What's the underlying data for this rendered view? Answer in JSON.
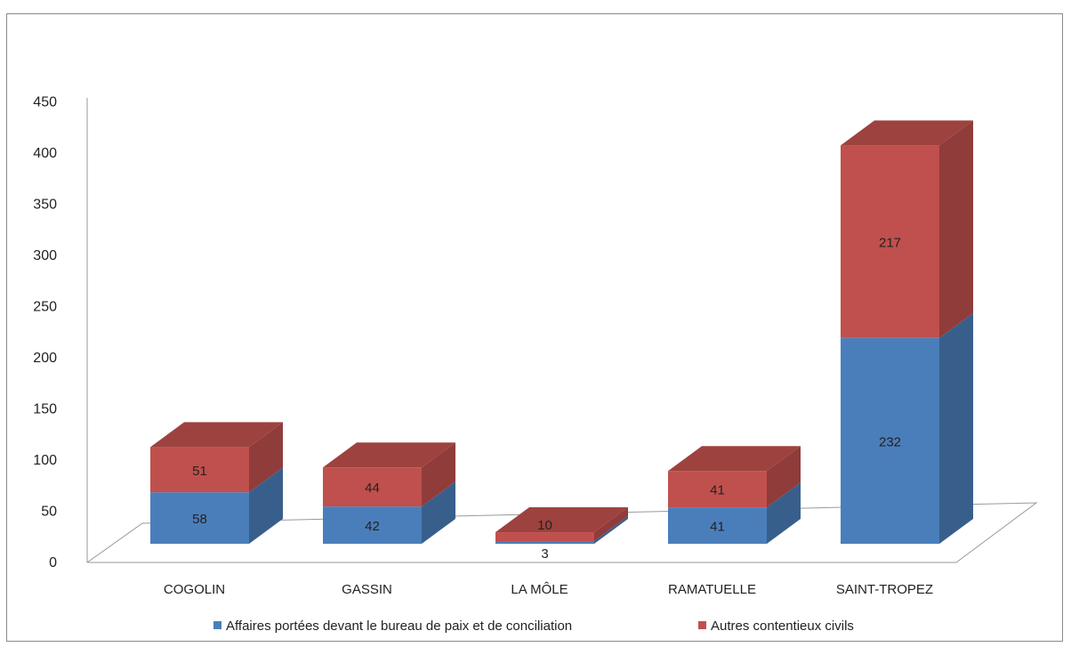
{
  "chart_data": {
    "type": "bar",
    "stacked": true,
    "three_d": true,
    "categories": [
      "COGOLIN",
      "GASSIN",
      "LA MÔLE",
      "RAMATUELLE",
      "SAINT-TROPEZ"
    ],
    "series": [
      {
        "name": "Affaires portées devant le bureau de paix et de conciliation",
        "values": [
          58,
          42,
          3,
          41,
          232
        ],
        "color": "#4a7ebb"
      },
      {
        "name": "Autres contentieux civils",
        "values": [
          51,
          44,
          10,
          41,
          217
        ],
        "color": "#c0504d"
      }
    ],
    "y_ticks": [
      "0",
      "50",
      "100",
      "150",
      "200",
      "250",
      "300",
      "350",
      "400",
      "450"
    ],
    "ylim": [
      0,
      450
    ],
    "legend_position": "bottom",
    "grid": false
  }
}
